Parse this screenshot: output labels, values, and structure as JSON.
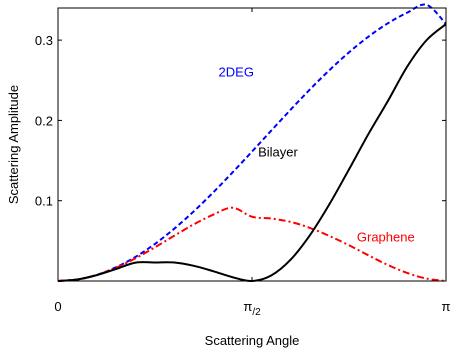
{
  "chart_data": {
    "type": "line",
    "title": "",
    "xlabel": "Scattering Angle",
    "ylabel": "Scattering Amplitude",
    "xlim": [
      0,
      3.14159
    ],
    "ylim": [
      0,
      0.34
    ],
    "grid": false,
    "legend": "none",
    "x_ticks": [
      {
        "value": 0,
        "label": "0"
      },
      {
        "value": 1.5708,
        "label": "π",
        "sub": "/2"
      },
      {
        "value": 3.14159,
        "label": "π"
      }
    ],
    "y_ticks": [
      {
        "value": 0.1,
        "label": "0.1"
      },
      {
        "value": 0.2,
        "label": "0.2"
      },
      {
        "value": 0.3,
        "label": "0.3"
      }
    ],
    "series": [
      {
        "name": "2DEG",
        "color": "#0000ff",
        "style": "dashed",
        "x": [
          0,
          0.1571,
          0.3142,
          0.4712,
          0.6283,
          0.7854,
          0.9425,
          1.0996,
          1.2566,
          1.4137,
          1.5708,
          1.7279,
          1.885,
          2.042,
          2.1991,
          2.3562,
          2.5133,
          2.6704,
          2.8274,
          2.9845,
          3.1416
        ],
        "y": [
          0,
          0.0019,
          0.0077,
          0.0172,
          0.0301,
          0.0462,
          0.0653,
          0.0868,
          0.1103,
          0.1353,
          0.1612,
          0.1875,
          0.2136,
          0.2389,
          0.2628,
          0.2848,
          0.3043,
          0.3209,
          0.3342,
          0.344,
          0.32
        ]
      },
      {
        "name": "Graphene",
        "color": "#ff0000",
        "style": "dash-dot",
        "x": [
          0,
          0.1571,
          0.3142,
          0.4712,
          0.6283,
          0.7854,
          0.9425,
          1.0996,
          1.2566,
          1.4137,
          1.5708,
          1.7279,
          1.885,
          2.042,
          2.1991,
          2.3562,
          2.5133,
          2.6704,
          2.8274,
          2.9845,
          3.1416
        ],
        "y": [
          0,
          0.0019,
          0.0076,
          0.0166,
          0.0283,
          0.042,
          0.0565,
          0.0706,
          0.0826,
          0.0913,
          0.08,
          0.0778,
          0.0735,
          0.066,
          0.056,
          0.0445,
          0.032,
          0.02,
          0.01,
          0.003,
          0
        ]
      },
      {
        "name": "Bilayer",
        "color": "#000000",
        "style": "solid",
        "x": [
          0,
          0.1571,
          0.3142,
          0.4712,
          0.6283,
          0.7854,
          0.9425,
          1.0996,
          1.2566,
          1.4137,
          1.5708,
          1.7279,
          1.885,
          2.042,
          2.1991,
          2.3562,
          2.5133,
          2.6704,
          2.8274,
          2.9845,
          3.1416
        ],
        "y": [
          0,
          0.0019,
          0.0073,
          0.015,
          0.0229,
          0.0231,
          0.023,
          0.0189,
          0.0122,
          0.0047,
          0,
          0.007,
          0.0268,
          0.0575,
          0.096,
          0.139,
          0.183,
          0.224,
          0.267,
          0.3,
          0.32
        ]
      }
    ],
    "annotations": [
      {
        "text": "2DEG",
        "color": "#0000ff",
        "x": 1.3,
        "y": 0.255
      },
      {
        "text": "Bilayer",
        "color": "#000000",
        "x": 1.62,
        "y": 0.155
      },
      {
        "text": "Graphene",
        "color": "#ff0000",
        "x": 2.42,
        "y": 0.049
      }
    ]
  }
}
